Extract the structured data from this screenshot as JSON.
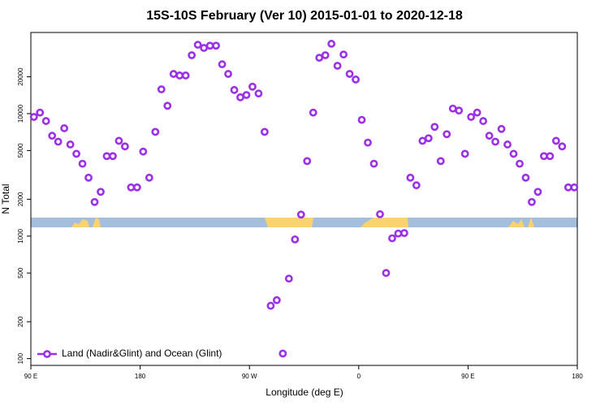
{
  "chart_data": {
    "type": "scatter",
    "title": "15S-10S February (Ver 10)   2015-01-01 to 2020-12-18",
    "xlabel": "Longitude (deg E)",
    "ylabel": "N Total",
    "xlim": [
      90,
      540
    ],
    "xticks": [
      {
        "value": 90,
        "label": "90 E"
      },
      180,
      {
        "value": 270,
        "label": "90 W"
      },
      {
        "value": 360,
        "label": "0"
      },
      {
        "value": 450,
        "label": "90 E"
      },
      {
        "value": 540,
        "label": "180"
      }
    ],
    "ylim": [
      88,
      46000
    ],
    "log_y": true,
    "yticks": [
      100,
      200,
      500,
      1000,
      2000,
      5000,
      10000,
      20000
    ],
    "legend": "bottom-left",
    "series": [
      {
        "name": "Land (Nadir&Glint) and Ocean (Glint)",
        "color": "#9b30e8",
        "x": [
          92.5,
          97.5,
          102.5,
          107.5,
          112.5,
          117.5,
          122.5,
          127.5,
          132.5,
          137.5,
          142.5,
          147.5,
          152.5,
          157.5,
          162.5,
          167.5,
          172.5,
          177.5,
          182.5,
          187.5,
          192.5,
          197.5,
          202.5,
          207.5,
          212.5,
          217.5,
          222.5,
          227.5,
          232.5,
          237.5,
          242.5,
          247.5,
          252.5,
          257.5,
          262.5,
          267.5,
          272.5,
          277.5,
          282.5,
          287.5,
          292.5,
          297.5,
          302.5,
          307.5,
          312.5,
          317.5,
          322.5,
          327.5,
          332.5,
          337.5,
          342.5,
          347.5,
          352.5,
          357.5,
          362.5,
          367.5,
          372.5,
          377.5,
          382.5,
          387.5,
          392.5,
          397.5,
          402.5,
          407.5,
          412.5,
          417.5,
          422.5,
          427.5,
          432.5,
          437.5,
          442.5,
          447.5,
          452.5,
          457.5,
          462.5,
          467.5,
          472.5,
          477.5,
          482.5,
          487.5,
          492.5,
          497.5,
          502.5,
          507.5,
          512.5,
          517.5,
          522.5,
          527.5,
          532.5,
          537.5
        ],
        "values": [
          9400,
          10200,
          8700,
          6600,
          5900,
          7600,
          5600,
          4700,
          3900,
          3000,
          1900,
          2300,
          4500,
          4500,
          6000,
          5400,
          2500,
          2500,
          4900,
          3000,
          7100,
          15800,
          11600,
          21100,
          20500,
          20500,
          30000,
          36500,
          34400,
          35900,
          35900,
          25300,
          21100,
          15600,
          13600,
          14200,
          16600,
          14600,
          7100,
          270,
          300,
          110,
          450,
          940,
          1500,
          4100,
          10200,
          28600,
          30000,
          37200,
          24600,
          30400,
          21100,
          19000,
          8900,
          5800,
          3900,
          1510,
          500,
          960,
          1050,
          1060,
          3000,
          2600,
          6000,
          6300,
          7800,
          4100,
          6800,
          11000,
          10600,
          4700,
          9400,
          10200,
          8700,
          6600,
          5900,
          7500,
          5600,
          4700,
          3900,
          3000,
          1900,
          2300,
          4500,
          4500,
          6000,
          5400,
          2500,
          2500
        ]
      }
    ]
  }
}
